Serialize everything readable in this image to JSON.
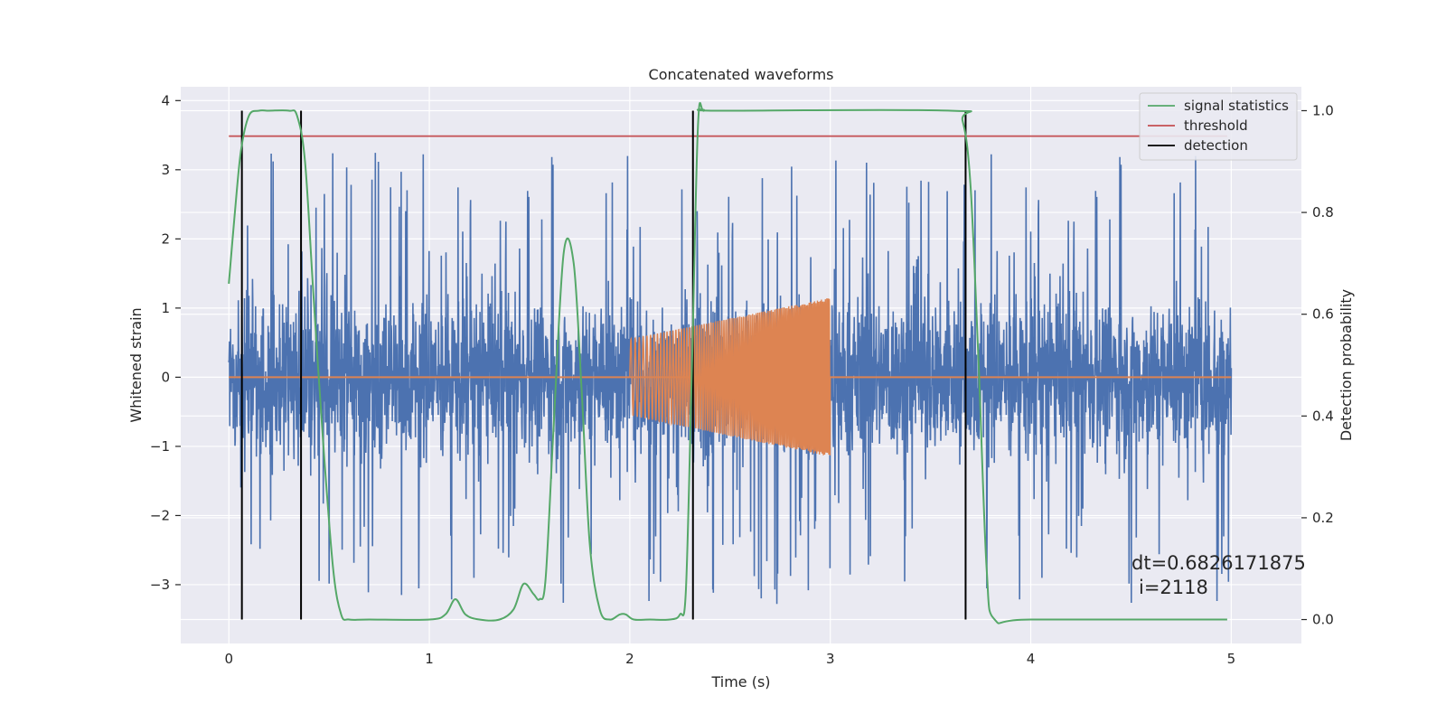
{
  "chart_data": {
    "type": "line",
    "title": "Concatenated waveforms",
    "xlabel": "Time (s)",
    "ylabel": "Whitened strain",
    "y2label": "Detection probability",
    "xlim": [
      -0.24,
      5.35
    ],
    "ylim": [
      -3.85,
      4.2
    ],
    "y2lim": [
      -0.047,
      1.047
    ],
    "xticks": [
      0,
      1,
      2,
      3,
      4,
      5
    ],
    "yticks": [
      -3,
      -2,
      -1,
      0,
      1,
      2,
      3,
      4
    ],
    "y2ticks": [
      0.0,
      0.2,
      0.4,
      0.6,
      0.8,
      1.0
    ],
    "grid": true,
    "legend_position": "top-right",
    "colors": {
      "strain": "#4c72b0",
      "template": "#dd8452",
      "signal_statistics": "#55a868",
      "threshold": "#c44e52",
      "detection": "#000000",
      "background": "#eaeaf2",
      "grid": "#ffffff"
    },
    "series": [
      {
        "name": "signal statistics",
        "axis": "right",
        "x": [
          0.0,
          0.03,
          0.06,
          0.1,
          0.15,
          0.2,
          0.3,
          0.34,
          0.38,
          0.42,
          0.47,
          0.52,
          0.56,
          0.6,
          0.7,
          1.0,
          1.08,
          1.13,
          1.18,
          1.25,
          1.35,
          1.42,
          1.47,
          1.52,
          1.55,
          1.58,
          1.62,
          1.67,
          1.72,
          1.76,
          1.8,
          1.85,
          1.9,
          1.95,
          1.98,
          2.02,
          2.1,
          2.2,
          2.25,
          2.28,
          2.31,
          2.34,
          2.37,
          2.45,
          3.6,
          3.66,
          3.7,
          3.74,
          3.78,
          3.82,
          4.0,
          4.98
        ],
        "values": [
          0.66,
          0.8,
          0.92,
          0.99,
          1.0,
          1.0,
          1.0,
          0.99,
          0.9,
          0.65,
          0.35,
          0.1,
          0.01,
          0.0,
          0.0,
          0.0,
          0.01,
          0.04,
          0.01,
          0.0,
          0.0,
          0.02,
          0.07,
          0.05,
          0.04,
          0.08,
          0.38,
          0.72,
          0.7,
          0.45,
          0.15,
          0.02,
          0.0,
          0.01,
          0.01,
          0.0,
          0.0,
          0.0,
          0.01,
          0.06,
          0.5,
          0.97,
          1.0,
          1.0,
          1.0,
          0.98,
          0.85,
          0.5,
          0.1,
          0.0,
          0.0,
          0.0
        ]
      },
      {
        "name": "threshold",
        "axis": "right",
        "x": [
          0.0,
          4.98
        ],
        "values": [
          0.95,
          0.95
        ]
      },
      {
        "name": "detection",
        "axis": "right",
        "x": [
          0.065,
          0.36,
          2.315,
          3.675
        ],
        "values": [
          1.0,
          1.0,
          1.0,
          1.0
        ]
      },
      {
        "name": "",
        "axis": "left",
        "description_note": "",
        "x_range": [
          0.0,
          5.0
        ],
        "amplitude": 1.35,
        "values": []
      },
      {
        "name": "",
        "axis": "left",
        "x_range": [
          2.0,
          3.0
        ],
        "amplitude_start": 0.55,
        "amplitude_end": 1.15,
        "values": []
      }
    ],
    "annotations": [
      "dt=0.6826171875",
      "i=2118"
    ]
  }
}
